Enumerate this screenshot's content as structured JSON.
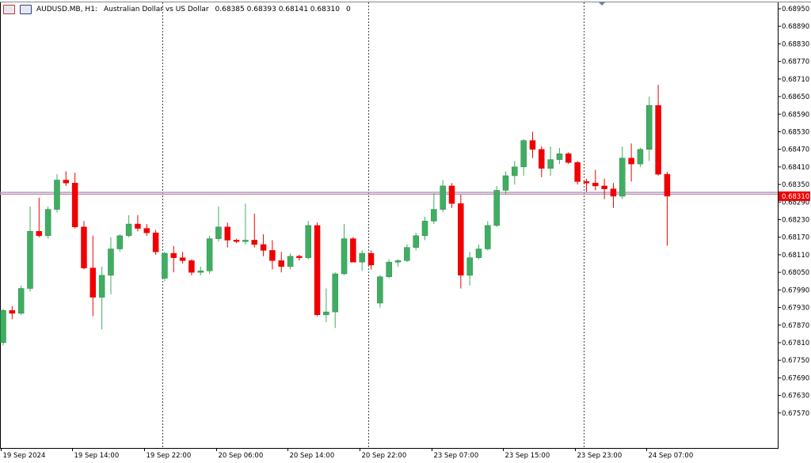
{
  "header": {
    "symbol": "AUDUSD.MB, H1:",
    "description": "Australian Dollar vs US Dollar",
    "ohlc": "0.68385 0.68393 0.68141 0.68310",
    "extra": "0"
  },
  "colors": {
    "bull": "#3fae62",
    "bear": "#f00000",
    "grid": "#444444",
    "hline_blue": "#9a9ad6",
    "hline_red": "#d98a8a",
    "price_tag": "#f00000"
  },
  "chart_data": {
    "type": "candlestick",
    "symbol": "AUDUSD.MB",
    "timeframe": "H1",
    "ylim": [
      0.6751,
      0.6895
    ],
    "current_price": "0.68310",
    "y_ticks": [
      "0.68950",
      "0.68890",
      "0.68830",
      "0.68770",
      "0.68710",
      "0.68650",
      "0.68590",
      "0.68530",
      "0.68470",
      "0.68410",
      "0.68350",
      "0.68290",
      "0.68230",
      "0.68170",
      "0.68110",
      "0.68050",
      "0.67990",
      "0.67930",
      "0.67870",
      "0.67810",
      "0.67750",
      "0.67690",
      "0.67630",
      "0.67570"
    ],
    "x_ticks": [
      "19 Sep 2024",
      "19 Sep 14:00",
      "19 Sep 22:00",
      "20 Sep 06:00",
      "20 Sep 14:00",
      "20 Sep 22:00",
      "23 Sep 07:00",
      "23 Sep 15:00",
      "23 Sep 23:00",
      "24 Sep 07:00"
    ],
    "x_tick_bar_index": [
      0,
      8,
      16,
      24,
      32,
      40,
      48,
      56,
      64,
      72
    ],
    "session_separator_bar_index": [
      18,
      41,
      65
    ],
    "horizontal_lines": [
      0.68323,
      0.68317
    ],
    "candles": [
      [
        0.6781,
        0.67925,
        0.678,
        0.6792
      ],
      [
        0.6792,
        0.67935,
        0.6789,
        0.6791
      ],
      [
        0.6791,
        0.68005,
        0.67905,
        0.67995
      ],
      [
        0.67995,
        0.68275,
        0.67985,
        0.6819
      ],
      [
        0.6819,
        0.68305,
        0.6817,
        0.68175
      ],
      [
        0.68175,
        0.68275,
        0.68165,
        0.68265
      ],
      [
        0.68265,
        0.68385,
        0.68255,
        0.68365
      ],
      [
        0.68365,
        0.68395,
        0.68345,
        0.68355
      ],
      [
        0.68355,
        0.6839,
        0.682,
        0.68205
      ],
      [
        0.68205,
        0.68225,
        0.6806,
        0.68065
      ],
      [
        0.68065,
        0.68175,
        0.679,
        0.67965
      ],
      [
        0.67965,
        0.6807,
        0.67855,
        0.6804
      ],
      [
        0.6804,
        0.6817,
        0.67975,
        0.6813
      ],
      [
        0.6813,
        0.6818,
        0.6812,
        0.68175
      ],
      [
        0.68175,
        0.68245,
        0.6817,
        0.68215
      ],
      [
        0.68215,
        0.68245,
        0.6819,
        0.682
      ],
      [
        0.682,
        0.68215,
        0.68175,
        0.68185
      ],
      [
        0.68185,
        0.68195,
        0.6811,
        0.6812
      ],
      [
        0.6803,
        0.6812,
        0.6802,
        0.68115
      ],
      [
        0.68115,
        0.6814,
        0.6805,
        0.681
      ],
      [
        0.681,
        0.6812,
        0.6808,
        0.6809
      ],
      [
        0.6809,
        0.68095,
        0.6804,
        0.6805
      ],
      [
        0.6805,
        0.6807,
        0.6804,
        0.68055
      ],
      [
        0.68055,
        0.68175,
        0.68045,
        0.68165
      ],
      [
        0.68165,
        0.68275,
        0.68155,
        0.68205
      ],
      [
        0.68205,
        0.6822,
        0.68135,
        0.6816
      ],
      [
        0.6816,
        0.68165,
        0.6815,
        0.68155
      ],
      [
        0.68155,
        0.68285,
        0.68145,
        0.6816
      ],
      [
        0.6816,
        0.6825,
        0.68135,
        0.68145
      ],
      [
        0.68145,
        0.6818,
        0.68105,
        0.68125
      ],
      [
        0.68125,
        0.6816,
        0.6806,
        0.6809
      ],
      [
        0.6809,
        0.6812,
        0.6805,
        0.6807
      ],
      [
        0.6807,
        0.68115,
        0.6806,
        0.68105
      ],
      [
        0.68105,
        0.6811,
        0.6809,
        0.681
      ],
      [
        0.681,
        0.68225,
        0.68095,
        0.6821
      ],
      [
        0.6821,
        0.6822,
        0.679,
        0.67905
      ],
      [
        0.67905,
        0.67995,
        0.6788,
        0.67915
      ],
      [
        0.67915,
        0.6805,
        0.6786,
        0.68045
      ],
      [
        0.68045,
        0.68215,
        0.6804,
        0.68165
      ],
      [
        0.68165,
        0.6817,
        0.68085,
        0.68085
      ],
      [
        0.68085,
        0.68125,
        0.68055,
        0.68115
      ],
      [
        0.68115,
        0.68125,
        0.6806,
        0.68075
      ],
      [
        0.67945,
        0.6804,
        0.6793,
        0.68035
      ],
      [
        0.68035,
        0.68095,
        0.6803,
        0.68085
      ],
      [
        0.68085,
        0.68095,
        0.6807,
        0.6809
      ],
      [
        0.6809,
        0.68145,
        0.68085,
        0.68135
      ],
      [
        0.68135,
        0.68185,
        0.68125,
        0.68175
      ],
      [
        0.68175,
        0.6824,
        0.6816,
        0.68225
      ],
      [
        0.68225,
        0.6832,
        0.68215,
        0.68265
      ],
      [
        0.68265,
        0.68365,
        0.68255,
        0.68345
      ],
      [
        0.68345,
        0.68355,
        0.6827,
        0.68285
      ],
      [
        0.68285,
        0.68315,
        0.67995,
        0.6804
      ],
      [
        0.6804,
        0.6812,
        0.68005,
        0.681
      ],
      [
        0.681,
        0.68145,
        0.68095,
        0.6813
      ],
      [
        0.6813,
        0.68225,
        0.68125,
        0.6821
      ],
      [
        0.6821,
        0.68345,
        0.68205,
        0.6833
      ],
      [
        0.6833,
        0.68395,
        0.68315,
        0.6838
      ],
      [
        0.6838,
        0.6843,
        0.6835,
        0.6841
      ],
      [
        0.6841,
        0.68505,
        0.6838,
        0.685
      ],
      [
        0.685,
        0.6853,
        0.6844,
        0.6847
      ],
      [
        0.6847,
        0.6848,
        0.68375,
        0.68405
      ],
      [
        0.68405,
        0.6848,
        0.6838,
        0.68435
      ],
      [
        0.68435,
        0.68475,
        0.6842,
        0.68455
      ],
      [
        0.68455,
        0.6846,
        0.6842,
        0.68425
      ],
      [
        0.68425,
        0.6843,
        0.6835,
        0.6836
      ],
      [
        0.6836,
        0.6837,
        0.68325,
        0.68355
      ],
      [
        0.68355,
        0.684,
        0.6833,
        0.68345
      ],
      [
        0.68345,
        0.6837,
        0.683,
        0.68335
      ],
      [
        0.68335,
        0.68355,
        0.6827,
        0.6831
      ],
      [
        0.6831,
        0.6848,
        0.683,
        0.6844
      ],
      [
        0.6844,
        0.6849,
        0.6836,
        0.6842
      ],
      [
        0.6842,
        0.68475,
        0.6841,
        0.6847
      ],
      [
        0.6847,
        0.6865,
        0.6843,
        0.6862
      ],
      [
        0.6862,
        0.6869,
        0.6838,
        0.68385
      ],
      [
        0.68385,
        0.68393,
        0.68141,
        0.6831
      ]
    ]
  }
}
